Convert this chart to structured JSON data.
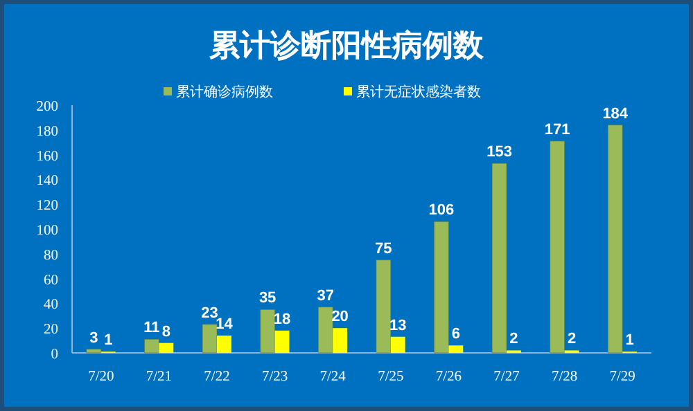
{
  "chart_data": {
    "type": "bar",
    "title": "累计诊断阳性病例数",
    "categories": [
      "7/20",
      "7/21",
      "7/22",
      "7/23",
      "7/24",
      "7/25",
      "7/26",
      "7/27",
      "7/28",
      "7/29"
    ],
    "series": [
      {
        "name": "累计确诊病例数",
        "color": "#9bbb59",
        "values": [
          3,
          11,
          23,
          35,
          37,
          75,
          106,
          153,
          171,
          184
        ]
      },
      {
        "name": "累计无症状感染者数",
        "color": "#ffff00",
        "values": [
          1,
          8,
          14,
          18,
          20,
          13,
          6,
          2,
          2,
          1
        ]
      }
    ],
    "ylim": [
      0,
      200
    ],
    "yticks": [
      0,
      20,
      40,
      60,
      80,
      100,
      120,
      140,
      160,
      180,
      200
    ],
    "data_labels": true,
    "legend": "top",
    "grid": false
  }
}
